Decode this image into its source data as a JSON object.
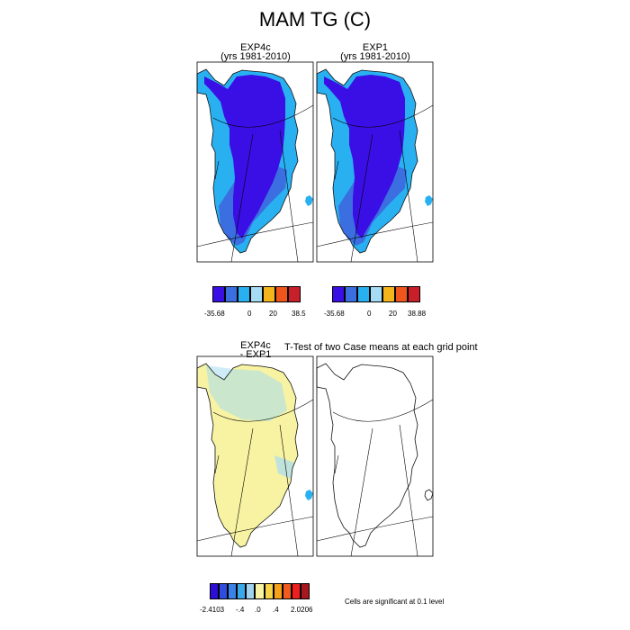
{
  "title": "MAM TG (C)",
  "panels": {
    "exp4c": {
      "title_line1": "EXP4c",
      "title_line2": "(yrs 1981-2010)"
    },
    "exp1": {
      "title_line1": "EXP1",
      "title_line2": "(yrs 1981-2010)"
    },
    "diff": {
      "title_line1": "EXP4c",
      "title_line2": "- EXP1"
    },
    "ttest": {
      "title": "T-Test of two Case means at each grid point"
    }
  },
  "colorbars": {
    "exp4c": {
      "colors": [
        "#3a0fe6",
        "#3b6ee0",
        "#29b0f0",
        "#a6dcf3",
        "#f3b41c",
        "#f0561c",
        "#c8202a"
      ],
      "labels": [
        "-35.68",
        "0",
        "20",
        "38.5"
      ]
    },
    "exp1": {
      "colors": [
        "#3a0fe6",
        "#3b6ee0",
        "#29b0f0",
        "#a6dcf3",
        "#f3b41c",
        "#f0561c",
        "#c8202a"
      ],
      "labels": [
        "-35.68",
        "0",
        "20",
        "38.88"
      ]
    },
    "diff": {
      "colors": [
        "#2b0fd6",
        "#2f4ee0",
        "#3b82e6",
        "#3aa9ec",
        "#9fd3f0",
        "#f7f3a3",
        "#f7d348",
        "#f7a11a",
        "#f25b1c",
        "#ef1f1f",
        "#a8161e"
      ],
      "labels": [
        "-2.4103",
        "-.4",
        ".0",
        ".4",
        "2.0206"
      ]
    }
  },
  "significance_note": "Cells are significant at 0.1 level",
  "colors": {
    "deep": "#3a0fe6",
    "mid": "#3b6ee0",
    "light": "#29b0f0",
    "pale": "#a6dcf3",
    "yellow": "#f7f3a3"
  }
}
